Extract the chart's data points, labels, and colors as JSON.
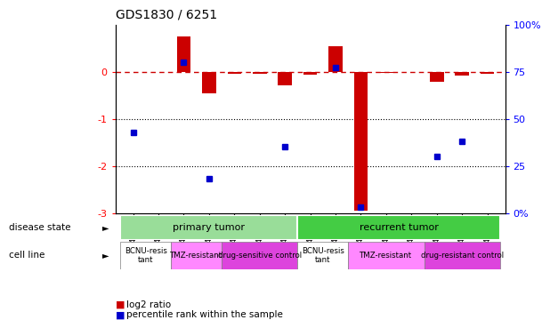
{
  "title": "GDS1830 / 6251",
  "samples": [
    "GSM40622",
    "GSM40648",
    "GSM40625",
    "GSM40646",
    "GSM40626",
    "GSM40642",
    "GSM40644",
    "GSM40619",
    "GSM40623",
    "GSM40620",
    "GSM40627",
    "GSM40628",
    "GSM40635",
    "GSM40638",
    "GSM40643"
  ],
  "log2_ratio": [
    0.0,
    0.0,
    0.75,
    -0.45,
    -0.05,
    -0.05,
    -0.28,
    -0.07,
    0.55,
    -2.95,
    -0.02,
    0.0,
    -0.22,
    -0.08,
    -0.05
  ],
  "percentile_rank": [
    43,
    null,
    80,
    18,
    null,
    null,
    35,
    null,
    77,
    3,
    null,
    null,
    30,
    38,
    null
  ],
  "ylim": [
    -3,
    1
  ],
  "bar_color": "#cc0000",
  "dot_color": "#0000cc",
  "hline_color": "#cc0000",
  "dotted_lines": [
    -1,
    -2
  ],
  "right_ticks": [
    0,
    25,
    50,
    75,
    100
  ],
  "right_tick_labels": [
    "0%",
    "25",
    "50",
    "75",
    "100%"
  ],
  "primary_color_light": "#aaddaa",
  "primary_color_dark": "#44cc44",
  "recurrent_color_light": "#44cc44",
  "recurrent_color_dark": "#00aa00",
  "disease_primary_color": "#99dd99",
  "disease_recurrent_color": "#44cc44",
  "cell_bcnu_color": "#ffffff",
  "cell_tmz_color": "#ff88ff",
  "cell_drug_color": "#dd44dd",
  "legend_red": "#cc0000",
  "legend_blue": "#0000cc"
}
